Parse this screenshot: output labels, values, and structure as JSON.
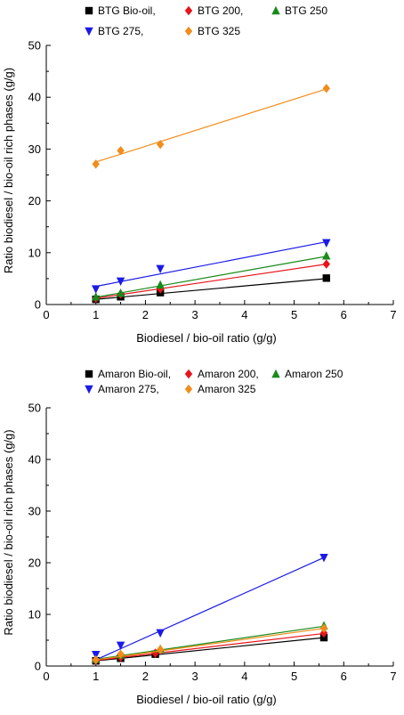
{
  "chart_data": [
    {
      "type": "scatter",
      "xlabel": "Biodiesel / bio-oil ratio (g/g)",
      "ylabel": "Ratio biodiesel / bio-oil rich phases (g/g)",
      "xlim": [
        0,
        7
      ],
      "ylim": [
        0,
        50
      ],
      "xticks": [
        0,
        1,
        2,
        3,
        4,
        5,
        6,
        7
      ],
      "yticks": [
        0,
        10,
        20,
        30,
        40,
        50
      ],
      "legend_position": "top",
      "series": [
        {
          "name": "BTG Bio-oil,",
          "color": "#000000",
          "marker": "square",
          "x": [
            1.0,
            1.5,
            2.3,
            5.65
          ],
          "y": [
            1.0,
            1.5,
            2.3,
            5.1
          ],
          "fit": [
            [
              1.0,
              1.0
            ],
            [
              5.65,
              5.0
            ]
          ]
        },
        {
          "name": "BTG 200,",
          "color": "#e8141a",
          "marker": "diamond",
          "x": [
            1.0,
            1.5,
            2.3,
            5.65
          ],
          "y": [
            1.2,
            2.0,
            3.0,
            7.8
          ],
          "fit": [
            [
              1.0,
              1.2
            ],
            [
              5.65,
              7.8
            ]
          ]
        },
        {
          "name": "BTG 250",
          "color": "#1a8a1a",
          "marker": "triangle-up",
          "x": [
            1.0,
            1.5,
            2.3,
            5.65
          ],
          "y": [
            1.5,
            2.2,
            3.8,
            9.4
          ],
          "fit": [
            [
              1.0,
              1.4
            ],
            [
              5.65,
              9.3
            ]
          ]
        },
        {
          "name": "BTG 275,",
          "color": "#1a1ae8",
          "marker": "triangle-down",
          "x": [
            1.0,
            1.5,
            2.3,
            5.65
          ],
          "y": [
            3.0,
            4.5,
            6.9,
            11.9
          ],
          "fit": [
            [
              1.0,
              3.5
            ],
            [
              5.65,
              12.1
            ]
          ]
        },
        {
          "name": "BTG 325",
          "color": "#f28c1a",
          "marker": "diamond",
          "x": [
            1.0,
            1.5,
            2.3,
            5.65
          ],
          "y": [
            27.1,
            29.7,
            30.9,
            41.7
          ],
          "fit": [
            [
              1.0,
              27.5
            ],
            [
              5.65,
              41.6
            ]
          ]
        }
      ]
    },
    {
      "type": "scatter",
      "xlabel": "Biodiesel / bio-oil ratio (g/g)",
      "ylabel": "Ratio biodiesel / bio-oil rich phases (g/g)",
      "xlim": [
        0,
        7
      ],
      "ylim": [
        0,
        50
      ],
      "xticks": [
        0,
        1,
        2,
        3,
        4,
        5,
        6,
        7
      ],
      "yticks": [
        0,
        10,
        20,
        30,
        40,
        50
      ],
      "legend_position": "top",
      "series": [
        {
          "name": "Amaron Bio-oil,",
          "color": "#000000",
          "marker": "square",
          "x": [
            1.0,
            1.5,
            2.2,
            5.6
          ],
          "y": [
            1.0,
            1.5,
            2.3,
            5.5
          ],
          "fit": [
            [
              1.0,
              1.0
            ],
            [
              5.6,
              5.5
            ]
          ]
        },
        {
          "name": "Amaron 200,",
          "color": "#e8141a",
          "marker": "diamond",
          "x": [
            1.0,
            1.5,
            2.2,
            5.6
          ],
          "y": [
            1.1,
            1.7,
            2.5,
            6.4
          ],
          "fit": [
            [
              1.0,
              1.1
            ],
            [
              5.6,
              6.3
            ]
          ]
        },
        {
          "name": "Amaron 250",
          "color": "#1a8a1a",
          "marker": "triangle-up",
          "x": [
            1.0,
            1.5,
            2.3,
            5.6
          ],
          "y": [
            1.3,
            2.2,
            3.3,
            7.8
          ],
          "fit": [
            [
              1.0,
              1.3
            ],
            [
              5.6,
              7.7
            ]
          ]
        },
        {
          "name": "Amaron 275,",
          "color": "#1a1ae8",
          "marker": "triangle-down",
          "x": [
            1.0,
            1.5,
            2.3,
            5.6
          ],
          "y": [
            2.2,
            4.0,
            6.4,
            21.0
          ],
          "fit": [
            [
              1.0,
              1.2
            ],
            [
              5.6,
              21.0
            ]
          ]
        },
        {
          "name": "Amaron 325",
          "color": "#f28c1a",
          "marker": "diamond",
          "x": [
            1.0,
            1.5,
            2.3,
            5.6
          ],
          "y": [
            1.2,
            2.3,
            3.2,
            7.3
          ],
          "fit": [
            [
              1.0,
              1.2
            ],
            [
              5.6,
              7.3
            ]
          ]
        }
      ]
    }
  ]
}
